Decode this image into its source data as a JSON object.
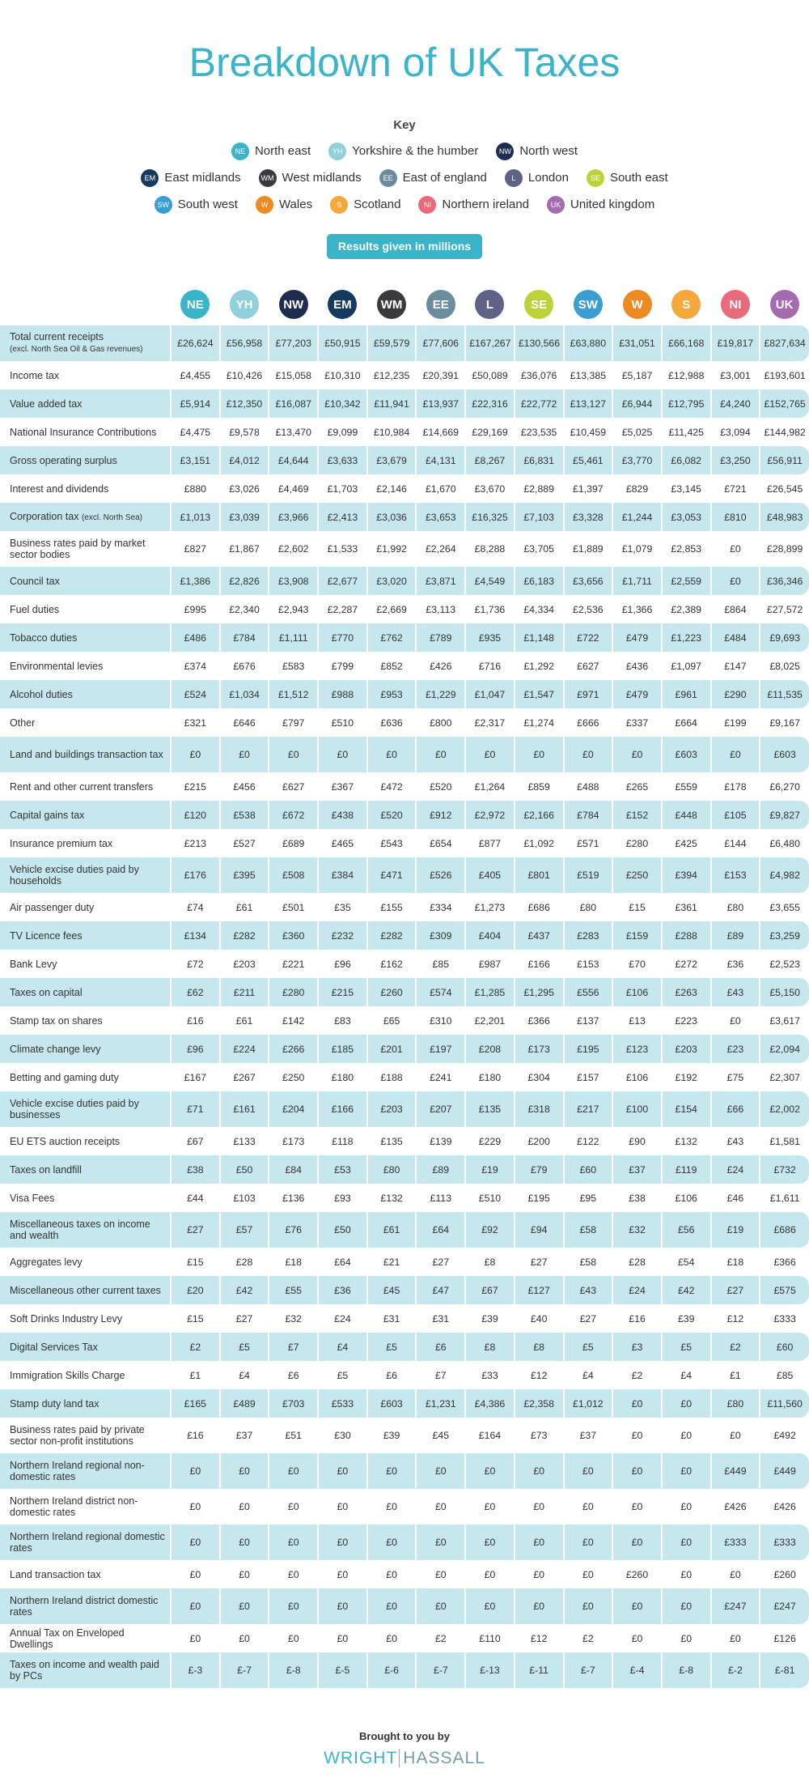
{
  "header": {
    "title": "Breakdown of UK Taxes",
    "key_title": "Key",
    "button": "Results given in millions"
  },
  "key": {
    "rows": [
      [
        {
          "abbr": "NE",
          "label": "North east",
          "color": "#3ab4c8"
        },
        {
          "abbr": "YH",
          "label": "Yorkshire & the humber",
          "color": "#8fd0da"
        },
        {
          "abbr": "NW",
          "label": "North west",
          "color": "#1e2d4f"
        }
      ],
      [
        {
          "abbr": "EM",
          "label": "East midlands",
          "color": "#153a5e"
        },
        {
          "abbr": "WM",
          "label": "West midlands",
          "color": "#3a3a3c"
        },
        {
          "abbr": "EE",
          "label": "East of england",
          "color": "#6b8d9e"
        },
        {
          "abbr": "L",
          "label": "London",
          "color": "#5e6286"
        },
        {
          "abbr": "SE",
          "label": "South east",
          "color": "#bcd23b"
        }
      ],
      [
        {
          "abbr": "SW",
          "label": "South west",
          "color": "#3a9ed2"
        },
        {
          "abbr": "W",
          "label": "Wales",
          "color": "#ee8a24"
        },
        {
          "abbr": "S",
          "label": "Scotland",
          "color": "#f5a83c"
        },
        {
          "abbr": "NI",
          "label": "Northern ireland",
          "color": "#e96a7b"
        },
        {
          "abbr": "UK",
          "label": "United kingdom",
          "color": "#a56bb0"
        }
      ]
    ]
  },
  "table": {
    "columns": [
      {
        "abbr": "NE",
        "color": "#3ab4c8"
      },
      {
        "abbr": "YH",
        "color": "#8fd0da"
      },
      {
        "abbr": "NW",
        "color": "#1e2d4f"
      },
      {
        "abbr": "EM",
        "color": "#153a5e"
      },
      {
        "abbr": "WM",
        "color": "#3a3a3c"
      },
      {
        "abbr": "EE",
        "color": "#6b8d9e"
      },
      {
        "abbr": "L",
        "color": "#5e6286"
      },
      {
        "abbr": "SE",
        "color": "#bcd23b"
      },
      {
        "abbr": "SW",
        "color": "#3a9ed2"
      },
      {
        "abbr": "W",
        "color": "#ee8a24"
      },
      {
        "abbr": "S",
        "color": "#f5a83c"
      },
      {
        "abbr": "NI",
        "color": "#e96a7b"
      },
      {
        "abbr": "UK",
        "color": "#a56bb0"
      }
    ],
    "rows": [
      {
        "label": "Total current receipts",
        "note": "(excl. North Sea Oil & Gas revenues)",
        "values": [
          "£26,624",
          "£56,958",
          "£77,203",
          "£50,915",
          "£59,579",
          "£77,606",
          "£167,267",
          "£130,566",
          "£63,880",
          "£31,051",
          "£66,168",
          "£19,817",
          "£827,634"
        ]
      },
      {
        "label": "Income tax",
        "values": [
          "£4,455",
          "£10,426",
          "£15,058",
          "£10,310",
          "£12,235",
          "£20,391",
          "£50,089",
          "£36,076",
          "£13,385",
          "£5,187",
          "£12,988",
          "£3,001",
          "£193,601"
        ]
      },
      {
        "label": "Value added tax",
        "values": [
          "£5,914",
          "£12,350",
          "£16,087",
          "£10,342",
          "£11,941",
          "£13,937",
          "£22,316",
          "£22,772",
          "£13,127",
          "£6,944",
          "£12,795",
          "£4,240",
          "£152,765"
        ]
      },
      {
        "label": "National Insurance Contributions",
        "values": [
          "£4,475",
          "£9,578",
          "£13,470",
          "£9,099",
          "£10,984",
          "£14,669",
          "£29,169",
          "£23,535",
          "£10,459",
          "£5,025",
          "£11,425",
          "£3,094",
          "£144,982"
        ]
      },
      {
        "label": "Gross operating surplus",
        "values": [
          "£3,151",
          "£4,012",
          "£4,644",
          "£3,633",
          "£3,679",
          "£4,131",
          "£8,267",
          "£6,831",
          "£5,461",
          "£3,770",
          "£6,082",
          "£3,250",
          "£56,911"
        ]
      },
      {
        "label": "Interest and dividends",
        "values": [
          "£880",
          "£3,026",
          "£4,469",
          "£1,703",
          "£2,146",
          "£1,670",
          "£3,670",
          "£2,889",
          "£1,397",
          "£829",
          "£3,145",
          "£721",
          "£26,545"
        ]
      },
      {
        "label": "Corporation tax",
        "note": "(excl. North Sea)",
        "values": [
          "£1,013",
          "£3,039",
          "£3,966",
          "£2,413",
          "£3,036",
          "£3,653",
          "£16,325",
          "£7,103",
          "£3,328",
          "£1,244",
          "£3,053",
          "£810",
          "£48,983"
        ]
      },
      {
        "label": "Business rates paid by market sector bodies",
        "values": [
          "£827",
          "£1,867",
          "£2,602",
          "£1,533",
          "£1,992",
          "£2,264",
          "£8,288",
          "£3,705",
          "£1,889",
          "£1,079",
          "£2,853",
          "£0",
          "£28,899"
        ]
      },
      {
        "label": "Council tax",
        "values": [
          "£1,386",
          "£2,826",
          "£3,908",
          "£2,677",
          "£3,020",
          "£3,871",
          "£4,549",
          "£6,183",
          "£3,656",
          "£1,711",
          "£2,559",
          "£0",
          "£36,346"
        ]
      },
      {
        "label": "Fuel duties",
        "values": [
          "£995",
          "£2,340",
          "£2,943",
          "£2,287",
          "£2,669",
          "£3,113",
          "£1,736",
          "£4,334",
          "£2,536",
          "£1,366",
          "£2,389",
          "£864",
          "£27,572"
        ]
      },
      {
        "label": "Tobacco duties",
        "values": [
          "£486",
          "£784",
          "£1,111",
          "£770",
          "£762",
          "£789",
          "£935",
          "£1,148",
          "£722",
          "£479",
          "£1,223",
          "£484",
          "£9,693"
        ]
      },
      {
        "label": "Environmental levies",
        "values": [
          "£374",
          "£676",
          "£583",
          "£799",
          "£852",
          "£426",
          "£716",
          "£1,292",
          "£627",
          "£436",
          "£1,097",
          "£147",
          "£8,025"
        ]
      },
      {
        "label": "Alcohol duties",
        "values": [
          "£524",
          "£1,034",
          "£1,512",
          "£988",
          "£953",
          "£1,229",
          "£1,047",
          "£1,547",
          "£971",
          "£479",
          "£961",
          "£290",
          "£11,535"
        ]
      },
      {
        "label": "Other",
        "values": [
          "£321",
          "£646",
          "£797",
          "£510",
          "£636",
          "£800",
          "£2,317",
          "£1,274",
          "£666",
          "£337",
          "£664",
          "£199",
          "£9,167"
        ]
      },
      {
        "label": "Land and buildings transaction tax",
        "values": [
          "£0",
          "£0",
          "£0",
          "£0",
          "£0",
          "£0",
          "£0",
          "£0",
          "£0",
          "£0",
          "£603",
          "£0",
          "£603"
        ]
      },
      {
        "label": "Rent and other current transfers",
        "values": [
          "£215",
          "£456",
          "£627",
          "£367",
          "£472",
          "£520",
          "£1,264",
          "£859",
          "£488",
          "£265",
          "£559",
          "£178",
          "£6,270"
        ]
      },
      {
        "label": "Capital gains tax",
        "values": [
          "£120",
          "£538",
          "£672",
          "£438",
          "£520",
          "£912",
          "£2,972",
          "£2,166",
          "£784",
          "£152",
          "£448",
          "£105",
          "£9,827"
        ]
      },
      {
        "label": "Insurance premium tax",
        "values": [
          "£213",
          "£527",
          "£689",
          "£465",
          "£543",
          "£654",
          "£877",
          "£1,092",
          "£571",
          "£280",
          "£425",
          "£144",
          "£6,480"
        ]
      },
      {
        "label": "Vehicle excise duties paid by households",
        "values": [
          "£176",
          "£395",
          "£508",
          "£384",
          "£471",
          "£526",
          "£405",
          "£801",
          "£519",
          "£250",
          "£394",
          "£153",
          "£4,982"
        ]
      },
      {
        "label": "Air passenger duty",
        "values": [
          "£74",
          "£61",
          "£501",
          "£35",
          "£155",
          "£334",
          "£1,273",
          "£686",
          "£80",
          "£15",
          "£361",
          "£80",
          "£3,655"
        ]
      },
      {
        "label": "TV Licence fees",
        "values": [
          "£134",
          "£282",
          "£360",
          "£232",
          "£282",
          "£309",
          "£404",
          "£437",
          "£283",
          "£159",
          "£288",
          "£89",
          "£3,259"
        ]
      },
      {
        "label": "Bank Levy",
        "values": [
          "£72",
          "£203",
          "£221",
          "£96",
          "£162",
          "£85",
          "£987",
          "£166",
          "£153",
          "£70",
          "£272",
          "£36",
          "£2,523"
        ]
      },
      {
        "label": "Taxes on capital",
        "values": [
          "£62",
          "£211",
          "£280",
          "£215",
          "£260",
          "£574",
          "£1,285",
          "£1,295",
          "£556",
          "£106",
          "£263",
          "£43",
          "£5,150"
        ]
      },
      {
        "label": "Stamp tax on shares",
        "values": [
          "£16",
          "£61",
          "£142",
          "£83",
          "£65",
          "£310",
          "£2,201",
          "£366",
          "£137",
          "£13",
          "£223",
          "£0",
          "£3,617"
        ]
      },
      {
        "label": "Climate change levy",
        "values": [
          "£96",
          "£224",
          "£266",
          "£185",
          "£201",
          "£197",
          "£208",
          "£173",
          "£195",
          "£123",
          "£203",
          "£23",
          "£2,094"
        ]
      },
      {
        "label": "Betting and gaming duty",
        "values": [
          "£167",
          "£267",
          "£250",
          "£180",
          "£188",
          "£241",
          "£180",
          "£304",
          "£157",
          "£106",
          "£192",
          "£75",
          "£2,307"
        ]
      },
      {
        "label": "Vehicle excise duties paid by businesses",
        "values": [
          "£71",
          "£161",
          "£204",
          "£166",
          "£203",
          "£207",
          "£135",
          "£318",
          "£217",
          "£100",
          "£154",
          "£66",
          "£2,002"
        ]
      },
      {
        "label": "EU ETS auction receipts",
        "values": [
          "£67",
          "£133",
          "£173",
          "£118",
          "£135",
          "£139",
          "£229",
          "£200",
          "£122",
          "£90",
          "£132",
          "£43",
          "£1,581"
        ]
      },
      {
        "label": "Taxes on landfill",
        "values": [
          "£38",
          "£50",
          "£84",
          "£53",
          "£80",
          "£89",
          "£19",
          "£79",
          "£60",
          "£37",
          "£119",
          "£24",
          "£732"
        ]
      },
      {
        "label": "Visa Fees",
        "values": [
          "£44",
          "£103",
          "£136",
          "£93",
          "£132",
          "£113",
          "£510",
          "£195",
          "£95",
          "£38",
          "£106",
          "£46",
          "£1,611"
        ]
      },
      {
        "label": "Miscellaneous taxes on income and wealth",
        "values": [
          "£27",
          "£57",
          "£76",
          "£50",
          "£61",
          "£64",
          "£92",
          "£94",
          "£58",
          "£32",
          "£56",
          "£19",
          "£686"
        ]
      },
      {
        "label": "Aggregates levy",
        "values": [
          "£15",
          "£28",
          "£18",
          "£64",
          "£21",
          "£27",
          "£8",
          "£27",
          "£58",
          "£28",
          "£54",
          "£18",
          "£366"
        ]
      },
      {
        "label": "Miscellaneous other current taxes",
        "values": [
          "£20",
          "£42",
          "£55",
          "£36",
          "£45",
          "£47",
          "£67",
          "£127",
          "£43",
          "£24",
          "£42",
          "£27",
          "£575"
        ]
      },
      {
        "label": "Soft Drinks Industry Levy",
        "values": [
          "£15",
          "£27",
          "£32",
          "£24",
          "£31",
          "£31",
          "£39",
          "£40",
          "£27",
          "£16",
          "£39",
          "£12",
          "£333"
        ]
      },
      {
        "label": "Digital Services Tax",
        "values": [
          "£2",
          "£5",
          "£7",
          "£4",
          "£5",
          "£6",
          "£8",
          "£8",
          "£5",
          "£3",
          "£5",
          "£2",
          "£60"
        ]
      },
      {
        "label": "Immigration Skills Charge",
        "values": [
          "£1",
          "£4",
          "£6",
          "£5",
          "£6",
          "£7",
          "£33",
          "£12",
          "£4",
          "£2",
          "£4",
          "£1",
          "£85"
        ]
      },
      {
        "label": "Stamp duty land tax",
        "values": [
          "£165",
          "£489",
          "£703",
          "£533",
          "£603",
          "£1,231",
          "£4,386",
          "£2,358",
          "£1,012",
          "£0",
          "£0",
          "£80",
          "£11,560"
        ]
      },
      {
        "label": "Business rates paid by private sector non-profit institutions",
        "values": [
          "£16",
          "£37",
          "£51",
          "£30",
          "£39",
          "£45",
          "£164",
          "£73",
          "£37",
          "£0",
          "£0",
          "£0",
          "£492"
        ]
      },
      {
        "label": "Northern Ireland regional non-domestic rates",
        "values": [
          "£0",
          "£0",
          "£0",
          "£0",
          "£0",
          "£0",
          "£0",
          "£0",
          "£0",
          "£0",
          "£0",
          "£449",
          "£449"
        ]
      },
      {
        "label": "Northern Ireland district non-domestic rates",
        "values": [
          "£0",
          "£0",
          "£0",
          "£0",
          "£0",
          "£0",
          "£0",
          "£0",
          "£0",
          "£0",
          "£0",
          "£426",
          "£426"
        ]
      },
      {
        "label": "Northern Ireland regional domestic rates",
        "values": [
          "£0",
          "£0",
          "£0",
          "£0",
          "£0",
          "£0",
          "£0",
          "£0",
          "£0",
          "£0",
          "£0",
          "£333",
          "£333"
        ]
      },
      {
        "label": "Land transaction tax",
        "values": [
          "£0",
          "£0",
          "£0",
          "£0",
          "£0",
          "£0",
          "£0",
          "£0",
          "£0",
          "£260",
          "£0",
          "£0",
          "£260"
        ]
      },
      {
        "label": "Northern Ireland district domestic rates",
        "values": [
          "£0",
          "£0",
          "£0",
          "£0",
          "£0",
          "£0",
          "£0",
          "£0",
          "£0",
          "£0",
          "£0",
          "£247",
          "£247"
        ]
      },
      {
        "label": "Annual Tax on Enveloped Dwellings",
        "values": [
          "£0",
          "£0",
          "£0",
          "£0",
          "£0",
          "£2",
          "£110",
          "£12",
          "£2",
          "£0",
          "£0",
          "£0",
          "£126"
        ]
      },
      {
        "label": "Taxes on income and wealth paid by PCs",
        "values": [
          "£-3",
          "£-7",
          "£-8",
          "£-5",
          "£-6",
          "£-7",
          "£-13",
          "£-11",
          "£-7",
          "£-4",
          "£-8",
          "£-2",
          "£-81"
        ]
      }
    ]
  },
  "footer": {
    "caption": "Brought to you by",
    "logo_left": "WRIGHT",
    "logo_right": "HASSALL"
  }
}
